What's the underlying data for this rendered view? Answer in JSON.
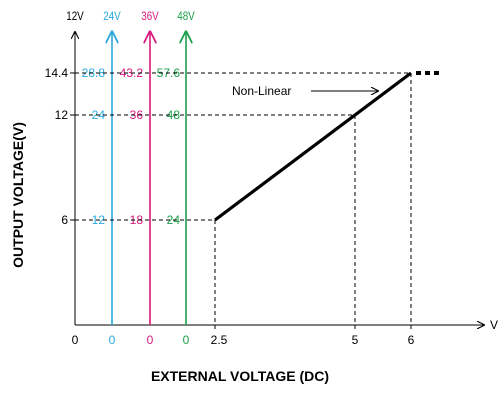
{
  "chart_data": {
    "type": "line",
    "xlabel": "EXTERNAL VOLTAGE (DC)",
    "ylabel": "OUTPUT VOLTAGE(V)",
    "x_unit": "V",
    "x_ticks": [
      "0",
      "2.5",
      "5",
      "6"
    ],
    "y_ticks": [
      "6",
      "12",
      "14.4"
    ],
    "x_breakpoints": [
      2.5,
      5,
      6
    ],
    "y_levels": [
      6,
      12,
      14.4
    ],
    "series": [
      {
        "points": [
          [
            2.5,
            6
          ],
          [
            6,
            14.4
          ]
        ]
      }
    ],
    "annotation": "Non-Linear",
    "model_axes": [
      {
        "label": "12V",
        "color": "#000000",
        "zero": "0",
        "ticks": [
          "6",
          "12",
          "14.4"
        ]
      },
      {
        "label": "24V",
        "color": "#29a9dc",
        "zero": "0",
        "ticks": [
          "12",
          "24",
          "28.8"
        ]
      },
      {
        "label": "36V",
        "color": "#d7187e",
        "zero": "0",
        "ticks": [
          "18",
          "36",
          "43.2"
        ]
      },
      {
        "label": "48V",
        "color": "#1aa04a",
        "zero": "0",
        "ticks": [
          "24",
          "48",
          "57.6"
        ]
      }
    ]
  }
}
